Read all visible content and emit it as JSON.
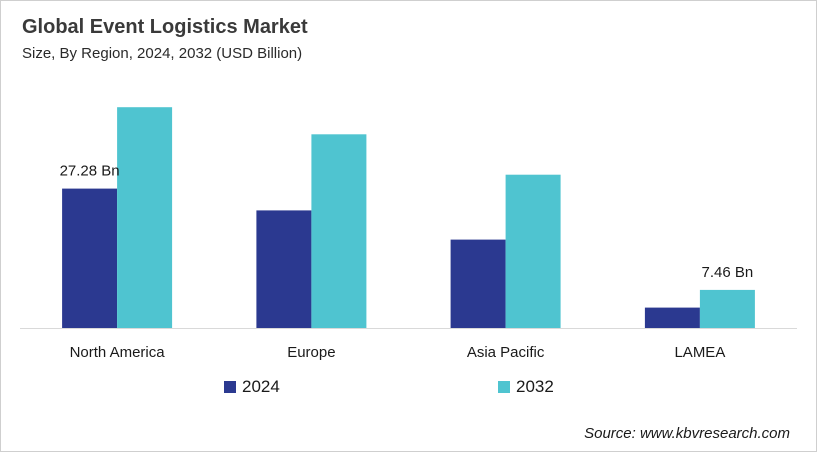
{
  "title": "Global Event Logistics Market",
  "subtitle": "Size, By Region, 2024, 2032 (USD Billion)",
  "source": "Source: www.kbvresearch.com",
  "colors": {
    "series_2024": "#2b3990",
    "series_2032": "#4fc4d0",
    "axis": "#d9d9d9"
  },
  "chart_data": {
    "type": "bar",
    "categories": [
      "North America",
      "Europe",
      "Asia Pacific",
      "LAMEA"
    ],
    "series": [
      {
        "name": "2024",
        "values": [
          27.28,
          23.0,
          17.3,
          4.0
        ]
      },
      {
        "name": "2032",
        "values": [
          43.2,
          37.9,
          30.0,
          7.46
        ]
      }
    ],
    "data_labels": [
      {
        "series": 0,
        "index": 0,
        "text": "27.28 Bn"
      },
      {
        "series": 1,
        "index": 3,
        "text": "7.46 Bn"
      }
    ],
    "ylim": [
      0,
      45
    ],
    "grid": false,
    "legend": "bottom-center"
  }
}
